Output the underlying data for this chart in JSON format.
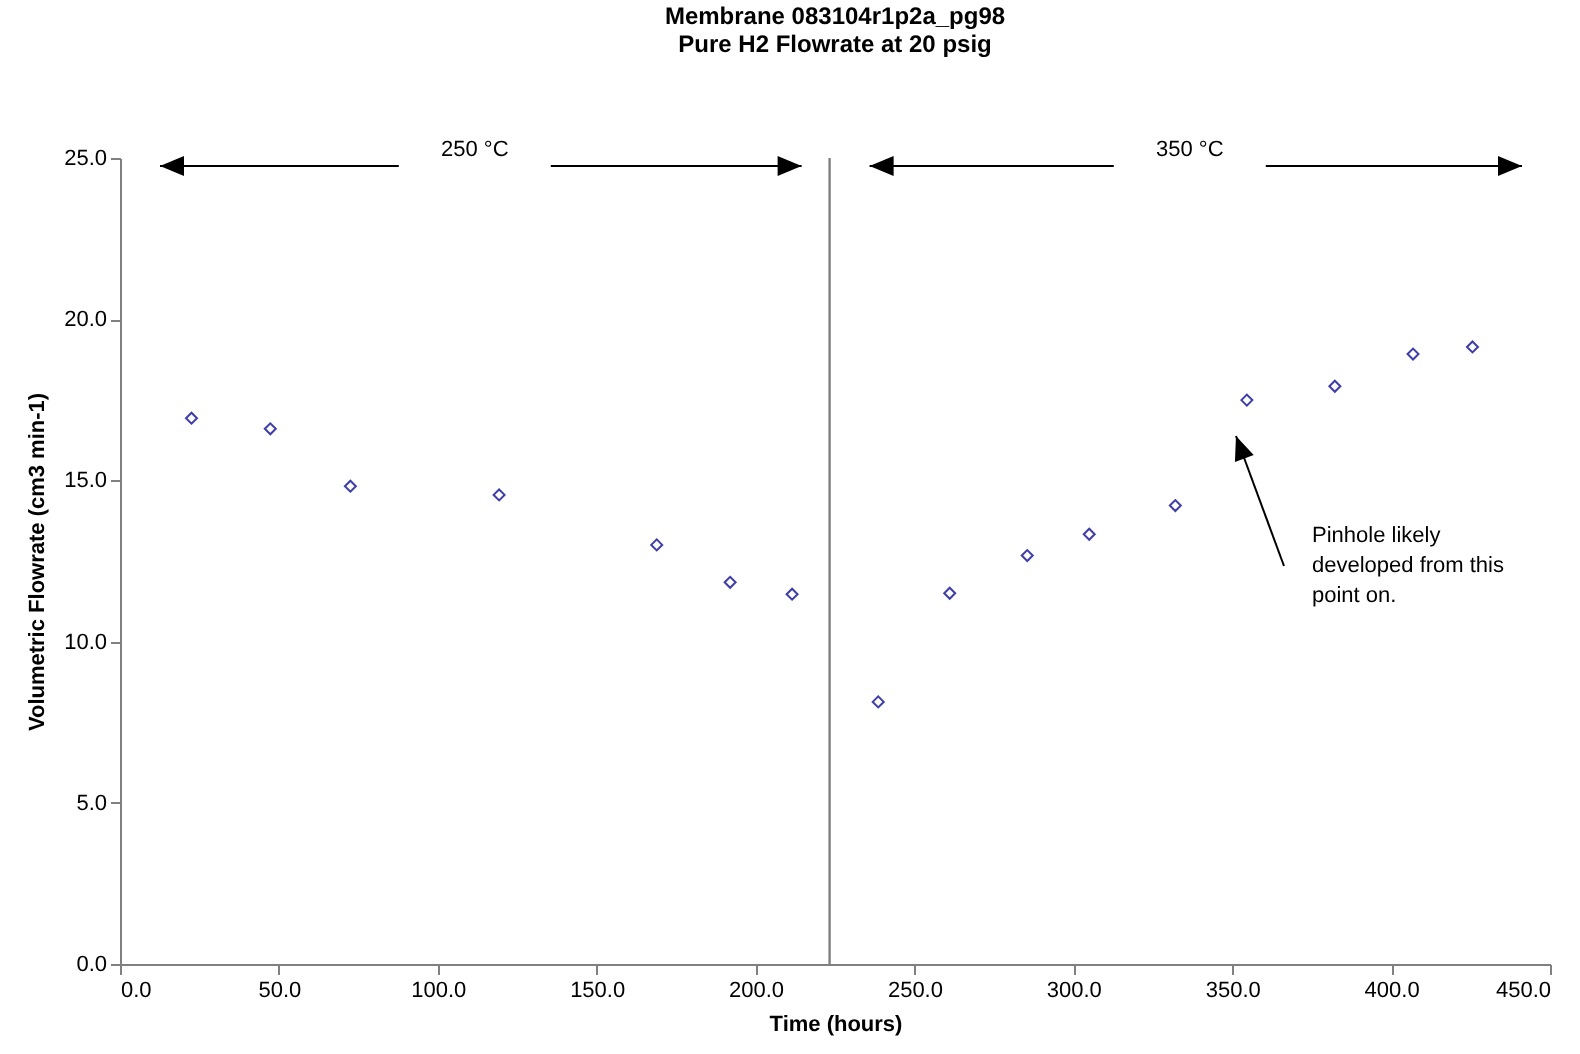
{
  "chart_data": {
    "type": "scatter",
    "title": "Membrane 083104r1p2a_pg98",
    "subtitle": "Pure H2 Flowrate at 20 psig",
    "xlabel": "Time (hours)",
    "ylabel": "Volumetric Flowrate (cm3 min-1)",
    "x": [
      22.5,
      47.3,
      72.5,
      119.3,
      168.9,
      192,
      211.5,
      238.6,
      261.1,
      285.5,
      305,
      332.1,
      354.6,
      382.3,
      406.9,
      425.6
    ],
    "series": [
      {
        "color": "#3c3cb4",
        "values": [
          16.93,
          16.6,
          14.82,
          14.55,
          13.0,
          11.84,
          11.47,
          8.13,
          11.5,
          12.67,
          13.33,
          14.22,
          17.49,
          17.92,
          18.92,
          19.14
        ]
      }
    ],
    "marker": "diamond",
    "grid": false,
    "xlim": [
      0,
      450
    ],
    "ylim": [
      0,
      25
    ],
    "xticks": [
      {
        "value": 0,
        "label": "0.0"
      },
      {
        "value": 50,
        "label": "50.0"
      },
      {
        "value": 100,
        "label": "100.0"
      },
      {
        "value": 150,
        "label": "150.0"
      },
      {
        "value": 200,
        "label": "200.0"
      },
      {
        "value": 250,
        "label": "250.0"
      },
      {
        "value": 300,
        "label": "300.0"
      },
      {
        "value": 350,
        "label": "350.0"
      },
      {
        "value": 400,
        "label": "400.0"
      },
      {
        "value": 450,
        "label": "450.0"
      }
    ],
    "yticks": [
      {
        "value": 0,
        "label": "0.0"
      },
      {
        "value": 5,
        "label": "5.0"
      },
      {
        "value": 10,
        "label": "10.0"
      },
      {
        "value": 15,
        "label": "15.0"
      },
      {
        "value": 20,
        "label": "20.0"
      },
      {
        "value": 25,
        "label": "25.0"
      }
    ],
    "ref_lines": [
      {
        "axis": "x",
        "value": 223.3,
        "color": "#808080"
      }
    ],
    "annotations": [
      "250 °C",
      "350 °C",
      "Pinhole likely\ndeveloped from this\npoint on."
    ]
  }
}
